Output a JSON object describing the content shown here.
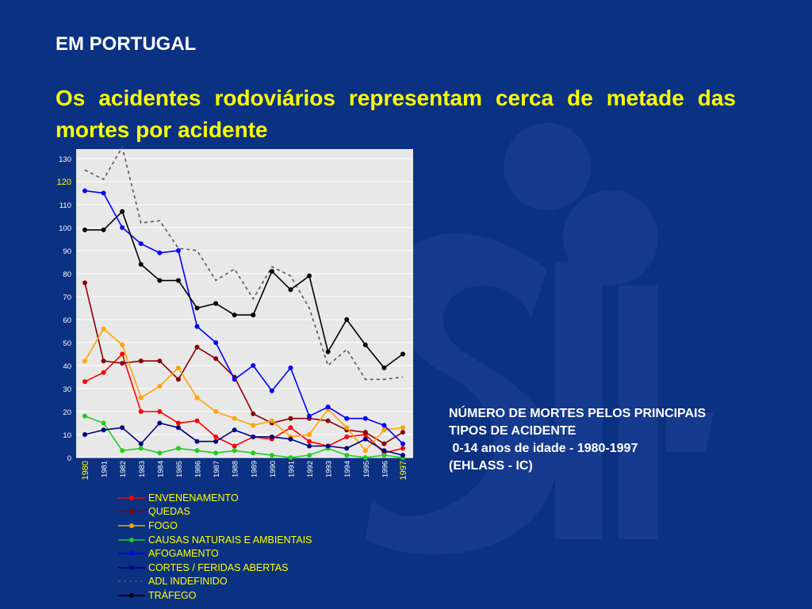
{
  "slide": {
    "heading": "EM PORTUGAL",
    "headline": "Os acidentes rodoviários representam cerca de metade das mortes por acidente",
    "caption_lines": [
      "NÚMERO DE MORTES PELOS PRINCIPAIS",
      "TIPOS DE ACIDENTE",
      " 0-14 anos de idade - 1980-1997",
      "(EHLASS - IC)"
    ],
    "colors": {
      "background": "#0b3182",
      "heading_text": "#ffffff",
      "headline_text": "#ffff00",
      "plot_background": "#e8e8e8",
      "watermark": "#153a8e"
    }
  },
  "chart_data": {
    "type": "line",
    "title": "",
    "xlabel": "",
    "ylabel": "",
    "ylim": [
      0,
      130
    ],
    "y_ticks": [
      0,
      10,
      20,
      30,
      40,
      50,
      60,
      70,
      80,
      90,
      100,
      110,
      120,
      130
    ],
    "highlighted_ticks": [
      120
    ],
    "x": [
      "1980",
      "1981",
      "1982",
      "1983",
      "1984",
      "1985",
      "1986",
      "1987",
      "1988",
      "1989",
      "1990",
      "1991",
      "1992",
      "1993",
      "1994",
      "1995",
      "1996",
      "1997"
    ],
    "highlighted_x": [
      "1980",
      "1997"
    ],
    "grid": "horizontal",
    "legend_position": "bottom",
    "series": [
      {
        "name": "ENVENENAMENTO",
        "color": "#ff0000",
        "dashed": false,
        "values": [
          33,
          37,
          45,
          20,
          20,
          15,
          16,
          9,
          5,
          9,
          8,
          13,
          7,
          5,
          9,
          10,
          2,
          4
        ]
      },
      {
        "name": "QUEDAS",
        "color": "#8b0000",
        "dashed": false,
        "values": [
          76,
          42,
          41,
          42,
          42,
          34,
          48,
          43,
          35,
          19,
          15,
          17,
          17,
          16,
          12,
          11,
          6,
          11
        ]
      },
      {
        "name": "FOGO",
        "color": "#ffa500",
        "dashed": false,
        "values": [
          42,
          56,
          49,
          26,
          31,
          39,
          26,
          20,
          17,
          14,
          16,
          9,
          10,
          21,
          13,
          3,
          12,
          13
        ]
      },
      {
        "name": "CAUSAS NATURAIS E AMBIENTAIS",
        "color": "#22cc22",
        "dashed": false,
        "values": [
          18,
          15,
          3,
          4,
          2,
          4,
          3,
          2,
          3,
          2,
          1,
          0,
          1,
          4,
          1,
          0,
          1,
          0
        ]
      },
      {
        "name": "AFOGAMENTO",
        "color": "#0000ff",
        "dashed": false,
        "values": [
          116,
          115,
          100,
          93,
          89,
          90,
          57,
          50,
          34,
          40,
          29,
          39,
          18,
          22,
          17,
          17,
          14,
          6
        ]
      },
      {
        "name": "CORTES / FERIDAS ABERTAS",
        "color": "#000080",
        "dashed": false,
        "values": [
          10,
          12,
          13,
          6,
          15,
          13,
          7,
          7,
          12,
          9,
          9,
          8,
          5,
          5,
          4,
          8,
          3,
          1
        ]
      },
      {
        "name": "ADL INDEFINIDO",
        "color": "#555555",
        "dashed": true,
        "values": [
          125,
          121,
          135,
          102,
          103,
          91,
          90,
          77,
          82,
          69,
          83,
          79,
          65,
          40,
          47,
          34,
          34,
          35
        ]
      },
      {
        "name": "TRÁFEGO",
        "color": "#000000",
        "dashed": false,
        "values": [
          99,
          99,
          107,
          84,
          77,
          77,
          65,
          67,
          62,
          62,
          81,
          73,
          79,
          46,
          60,
          49,
          39,
          45
        ]
      }
    ]
  }
}
